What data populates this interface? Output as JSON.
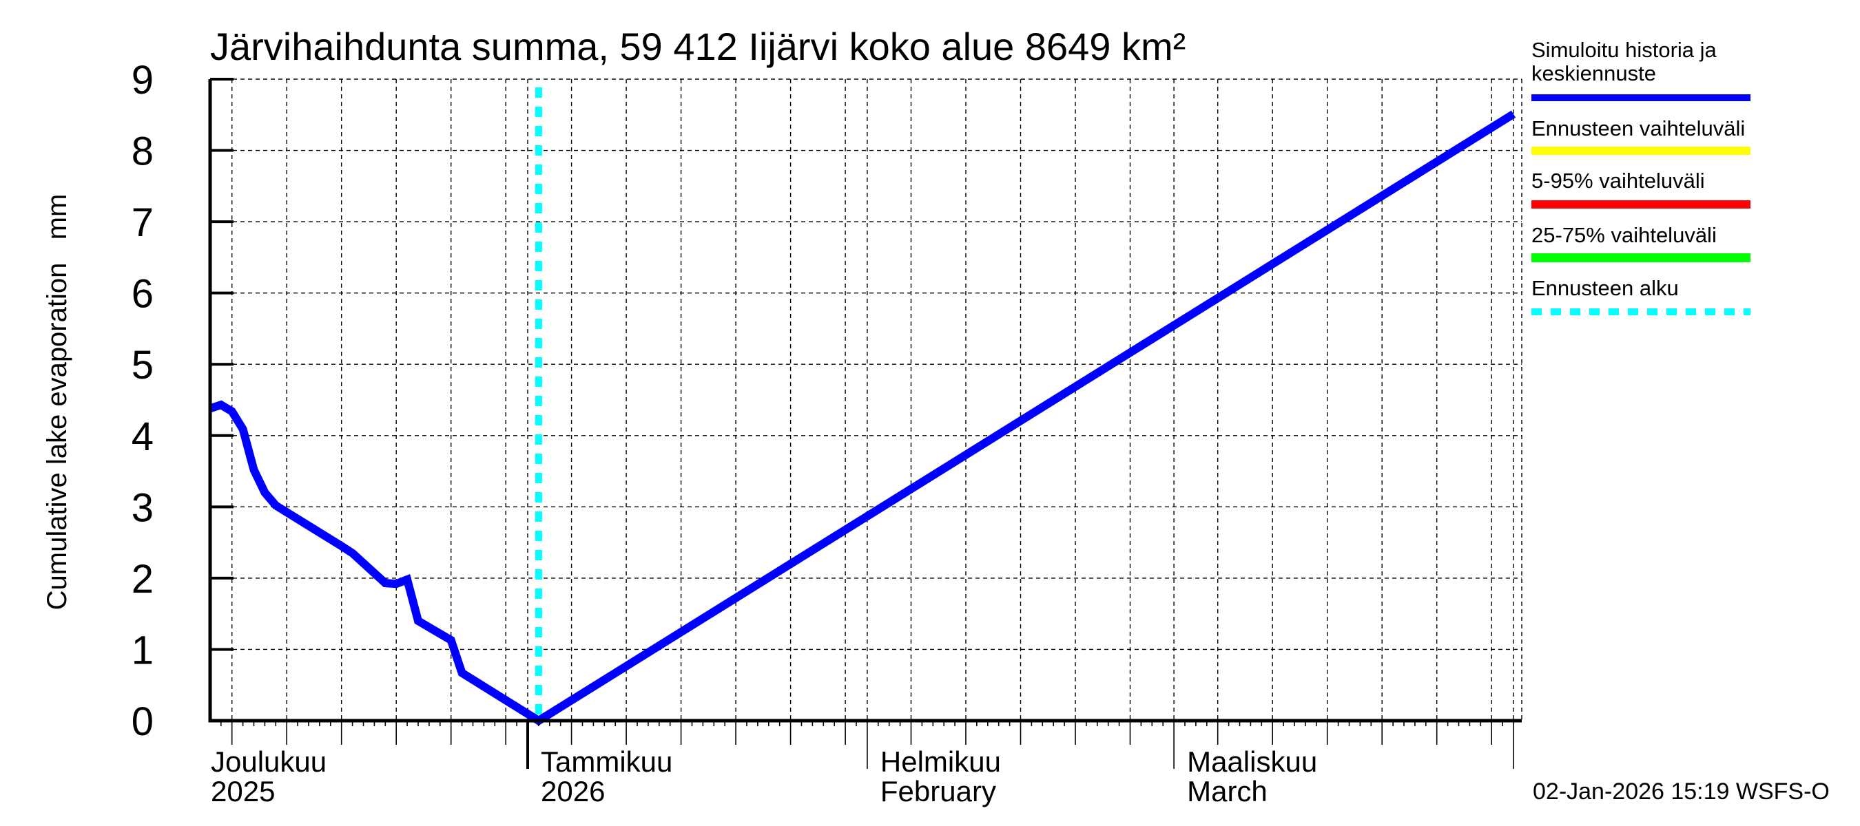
{
  "header": {
    "title": "Järvihaihdunta summa, 59 412 Iijärvi koko alue 8649 km²"
  },
  "footer": {
    "timestamp": "02-Jan-2026 15:19 WSFS-O"
  },
  "legend": {
    "items": [
      {
        "label_line1": "Simuloitu historia ja",
        "label_line2": "keskiennuste",
        "color": "#0000ff",
        "style": "solid"
      },
      {
        "label_line1": "Ennusteen vaihteluväli",
        "label_line2": "",
        "color": "#ffff00",
        "style": "solid"
      },
      {
        "label_line1": "5-95% vaihteluväli",
        "label_line2": "",
        "color": "#ff0000",
        "style": "solid"
      },
      {
        "label_line1": "25-75% vaihteluväli",
        "label_line2": "",
        "color": "#00ff00",
        "style": "solid"
      },
      {
        "label_line1": "Ennusteen alku",
        "label_line2": "",
        "color": "#00ffff",
        "style": "dashed"
      }
    ]
  },
  "colors": {
    "simulated": "#0000ff",
    "forecast_start": "#00ffff",
    "grid": "#000000",
    "background": "#ffffff"
  },
  "chart_data": {
    "type": "line",
    "title": "Järvihaihdunta summa, 59 412 Iijärvi koko alue 8649 km²",
    "xlabel": "",
    "ylabel": "Cumulative lake evaporation   mm",
    "ylim": [
      0,
      9
    ],
    "yticks": [
      0,
      1,
      2,
      3,
      4,
      5,
      6,
      7,
      8,
      9
    ],
    "xlim": [
      "2025-12-03",
      "2026-04-01"
    ],
    "grid": true,
    "legend_position": "right",
    "x_month_labels": [
      {
        "line1": "Joulukuu",
        "line2": "2025",
        "date": "2025-12-01"
      },
      {
        "line1": "Tammikuu",
        "line2": "2026",
        "date": "2026-01-01"
      },
      {
        "line1": "Helmikuu",
        "line2": "February",
        "date": "2026-02-01"
      },
      {
        "line1": "Maaliskuu",
        "line2": "March",
        "date": "2026-03-01"
      }
    ],
    "forecast_start": "2026-01-02",
    "series": [
      {
        "name": "Simuloitu historia ja keskiennuste",
        "color": "#0000ff",
        "x": [
          "2025-12-03",
          "2025-12-04",
          "2025-12-05",
          "2025-12-06",
          "2025-12-07",
          "2025-12-08",
          "2025-12-09",
          "2025-12-15",
          "2025-12-16",
          "2025-12-19",
          "2025-12-20",
          "2025-12-21",
          "2025-12-22",
          "2025-12-25",
          "2025-12-26",
          "2026-01-02",
          "2026-04-01"
        ],
        "values": [
          4.38,
          4.43,
          4.34,
          4.09,
          3.52,
          3.2,
          3.02,
          2.45,
          2.35,
          1.93,
          1.92,
          1.98,
          1.4,
          1.13,
          0.67,
          0.0,
          8.51
        ]
      },
      {
        "name": "Ennusteen vaihteluväli",
        "color": "#ffff00",
        "x": [],
        "values": []
      },
      {
        "name": "5-95% vaihteluväli",
        "color": "#ff0000",
        "x": [],
        "values": []
      },
      {
        "name": "25-75% vaihteluväli",
        "color": "#00ff00",
        "x": [],
        "values": []
      }
    ]
  }
}
